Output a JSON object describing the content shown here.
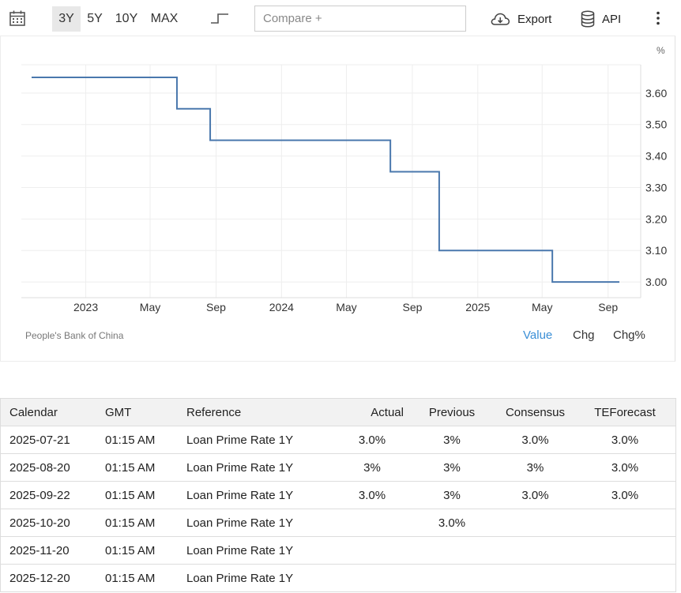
{
  "toolbar": {
    "ranges": [
      "3Y",
      "5Y",
      "10Y",
      "MAX"
    ],
    "active_range": "3Y",
    "compare_placeholder": "Compare +",
    "export_label": "Export",
    "api_label": "API"
  },
  "chart": {
    "source": "People's Bank of China",
    "modes": {
      "value": "Value",
      "chg": "Chg",
      "chg_pct": "Chg%"
    },
    "active_mode": "Value",
    "line_color": "#4a78ad",
    "active_mode_color": "#3b8fd6"
  },
  "chart_data": {
    "type": "line",
    "step": true,
    "unit": "%",
    "x_ticks": [
      "2023",
      "May",
      "Sep",
      "2024",
      "May",
      "Sep",
      "2025",
      "May",
      "Sep"
    ],
    "x_tick_dates": [
      "2023-01-01",
      "2023-05-01",
      "2023-09-01",
      "2024-01-01",
      "2024-05-01",
      "2024-09-01",
      "2025-01-01",
      "2025-05-01",
      "2025-09-01"
    ],
    "y_ticks": [
      "3.60",
      "3.50",
      "3.40",
      "3.30",
      "3.20",
      "3.10",
      "3.00"
    ],
    "ylim": [
      2.95,
      3.69
    ],
    "xlim": [
      "2022-09-22",
      "2025-09-22"
    ],
    "grid": true,
    "series": [
      {
        "points": [
          {
            "x": "2022-09-22",
            "y": 3.65
          },
          {
            "x": "2023-06-20",
            "y": 3.55
          },
          {
            "x": "2023-08-21",
            "y": 3.45
          },
          {
            "x": "2024-07-22",
            "y": 3.35
          },
          {
            "x": "2024-10-21",
            "y": 3.1
          },
          {
            "x": "2025-05-20",
            "y": 3.0
          },
          {
            "x": "2025-09-22",
            "y": 3.0
          }
        ]
      }
    ]
  },
  "calendar": {
    "headers": {
      "calendar": "Calendar",
      "gmt": "GMT",
      "reference": "Reference",
      "actual": "Actual",
      "previous": "Previous",
      "consensus": "Consensus",
      "teforecast": "TEForecast"
    },
    "rows": [
      {
        "date": "2025-07-21",
        "gmt": "01:15 AM",
        "reference": "Loan Prime Rate 1Y",
        "actual": "3.0%",
        "previous": "3%",
        "consensus": "3.0%",
        "teforecast": "3.0%"
      },
      {
        "date": "2025-08-20",
        "gmt": "01:15 AM",
        "reference": "Loan Prime Rate 1Y",
        "actual": "3%",
        "previous": "3%",
        "consensus": "3%",
        "teforecast": "3.0%"
      },
      {
        "date": "2025-09-22",
        "gmt": "01:15 AM",
        "reference": "Loan Prime Rate 1Y",
        "actual": "3.0%",
        "previous": "3%",
        "consensus": "3.0%",
        "teforecast": "3.0%"
      },
      {
        "date": "2025-10-20",
        "gmt": "01:15 AM",
        "reference": "Loan Prime Rate 1Y",
        "actual": "",
        "previous": "3.0%",
        "consensus": "",
        "teforecast": ""
      },
      {
        "date": "2025-11-20",
        "gmt": "01:15 AM",
        "reference": "Loan Prime Rate 1Y",
        "actual": "",
        "previous": "",
        "consensus": "",
        "teforecast": ""
      },
      {
        "date": "2025-12-20",
        "gmt": "01:15 AM",
        "reference": "Loan Prime Rate 1Y",
        "actual": "",
        "previous": "",
        "consensus": "",
        "teforecast": ""
      }
    ]
  }
}
